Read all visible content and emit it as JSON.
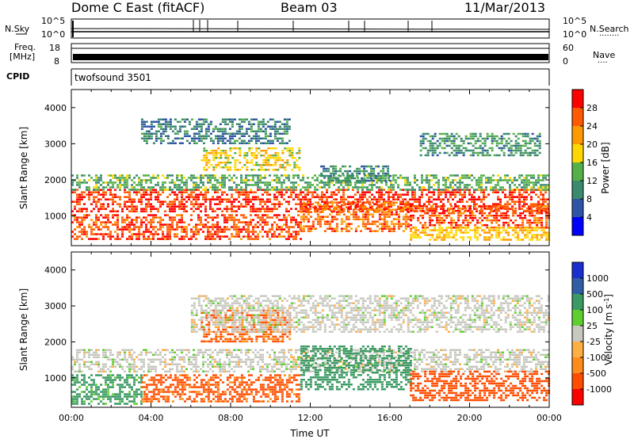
{
  "header": {
    "station": "Dome C East (fitACF)",
    "beam": "Beam 03",
    "date": "11/Mar/2013"
  },
  "params": {
    "nsky_label": "N.Sky",
    "nsearch_label": "N.Search",
    "nsearch_dots": "........",
    "sky_ticks_left": [
      "10^5",
      "10^0"
    ],
    "sky_ticks_right": [
      "10^5",
      "10^0"
    ],
    "freq_label_1": "Freq.",
    "freq_label_2": "[MHz]",
    "freq_ticks_left": [
      "18",
      "8"
    ],
    "nave_label": "Nave",
    "nave_dots": "....",
    "nave_ticks_right": [
      "60",
      "0"
    ],
    "cpid_label": "CPID",
    "cpid_value": "twofsound 3501"
  },
  "colors": {
    "power": [
      "#0000ff",
      "#2e55a5",
      "#3c8a6e",
      "#55b04a",
      "#ffd700",
      "#ff9900",
      "#ff5a00",
      "#ff0000"
    ],
    "velocity": [
      "#ff0000",
      "#ff4d00",
      "#ff8c1a",
      "#ffae42",
      "#c8c8c0",
      "#5fcf30",
      "#3b9a63",
      "#2f5ea7",
      "#1a2fcf"
    ]
  },
  "chart_data": [
    {
      "type": "heatmap",
      "name": "power",
      "ylabel": "Slant Range [km]",
      "yticks": [
        1000,
        2000,
        3000,
        4000
      ],
      "ylim": [
        180,
        4500
      ],
      "xlim": [
        0,
        24
      ],
      "colorbar_label": "Power [dB]",
      "colorbar_ticks": [
        4,
        8,
        12,
        16,
        20,
        24,
        28
      ],
      "colorbar_range": [
        0,
        32
      ],
      "bands": [
        {
          "t0": 0.0,
          "t1": 24.0,
          "r0": 1150,
          "r1": 1750,
          "level": 28
        },
        {
          "t0": 0.0,
          "t1": 11.5,
          "r0": 350,
          "r1": 1050,
          "level": 27
        },
        {
          "t0": 11.5,
          "t1": 17.0,
          "r0": 600,
          "r1": 1400,
          "level": 25
        },
        {
          "t0": 17.0,
          "t1": 24.0,
          "r0": 700,
          "r1": 1300,
          "level": 27
        },
        {
          "t0": 17.0,
          "t1": 24.0,
          "r0": 350,
          "r1": 700,
          "level": 20
        },
        {
          "t0": 6.5,
          "t1": 11.5,
          "r0": 2300,
          "r1": 2900,
          "level": 18
        },
        {
          "t0": 0.0,
          "t1": 24.0,
          "r0": 1750,
          "r1": 2150,
          "level": 13
        },
        {
          "t0": 3.5,
          "t1": 11.0,
          "r0": 3000,
          "r1": 3700,
          "level": 9
        },
        {
          "t0": 17.5,
          "t1": 23.5,
          "r0": 2700,
          "r1": 3300,
          "level": 11
        },
        {
          "t0": 12.5,
          "t1": 16.0,
          "r0": 2000,
          "r1": 2400,
          "level": 10
        }
      ]
    },
    {
      "type": "heatmap",
      "name": "velocity",
      "ylabel": "Slant Range [km]",
      "xlabel": "Time UT",
      "xticks": [
        "00:00",
        "04:00",
        "08:00",
        "12:00",
        "16:00",
        "20:00",
        "00:00"
      ],
      "yticks": [
        1000,
        2000,
        3000,
        4000
      ],
      "ylim": [
        180,
        4500
      ],
      "xlim": [
        0,
        24
      ],
      "colorbar_label": "Velocity [m s^-1]",
      "colorbar_ticks": [
        1000,
        500,
        100,
        25,
        -25,
        -100,
        -500,
        -1000
      ],
      "bands": [
        {
          "t0": 0.0,
          "t1": 24.0,
          "r0": 1150,
          "r1": 1800,
          "level": 0
        },
        {
          "t0": 0.0,
          "t1": 3.5,
          "r0": 300,
          "r1": 1100,
          "level": 150
        },
        {
          "t0": 3.5,
          "t1": 11.5,
          "r0": 350,
          "r1": 1100,
          "level": -150
        },
        {
          "t0": 11.5,
          "t1": 17.0,
          "r0": 700,
          "r1": 1900,
          "level": 300
        },
        {
          "t0": 17.0,
          "t1": 24.0,
          "r0": 400,
          "r1": 1200,
          "level": -200
        },
        {
          "t0": 6.5,
          "t1": 11.0,
          "r0": 2000,
          "r1": 2900,
          "level": -120
        },
        {
          "t0": 6.0,
          "t1": 24.0,
          "r0": 2300,
          "r1": 3300,
          "level": 0
        }
      ]
    }
  ]
}
